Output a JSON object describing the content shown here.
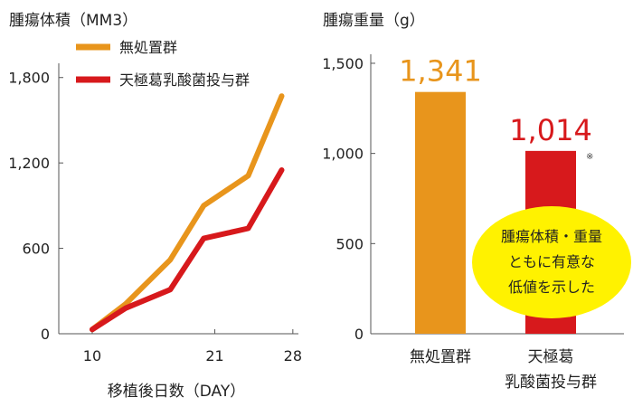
{
  "chart_data": [
    {
      "type": "line",
      "title": "腫瘍体積（MM3）",
      "xlabel": "移植後日数（DAY）",
      "ylabel": "",
      "x_ticks": [
        "10",
        "21",
        "28"
      ],
      "y_ticks": [
        "0",
        "600",
        "1,200",
        "1,800"
      ],
      "xlim": [
        7,
        28.5
      ],
      "ylim": [
        0,
        1900
      ],
      "legend": "top-left",
      "grid": false,
      "series": [
        {
          "name": "無処置群",
          "color": "#e8951c",
          "x": [
            10,
            13,
            17,
            20,
            24,
            27
          ],
          "y": [
            30,
            210,
            520,
            900,
            1110,
            1670
          ]
        },
        {
          "name": "天極葛乳酸菌投与群",
          "color": "#d7191c",
          "x": [
            10,
            13,
            17,
            20,
            24,
            27
          ],
          "y": [
            30,
            180,
            310,
            670,
            740,
            1150
          ]
        }
      ]
    },
    {
      "type": "bar",
      "title": "腫瘍重量（g）",
      "xlabel": "",
      "ylabel": "",
      "y_ticks": [
        "0",
        "500",
        "1,000",
        "1,500"
      ],
      "ylim": [
        0,
        1550
      ],
      "grid": false,
      "categories": [
        {
          "line1": "無処置群",
          "line2": ""
        },
        {
          "line1": "天極葛",
          "line2": "乳酸菌投与群"
        }
      ],
      "values": [
        1341,
        1014
      ],
      "value_labels": [
        "1,341",
        "1,014"
      ],
      "colors": [
        "#e8951c",
        "#d7191c"
      ],
      "asterisk": "※",
      "callout": {
        "line1": "腫瘍体積・重量",
        "line2": "ともに有意な",
        "line3": "低値を示した",
        "color": "#fff200"
      }
    }
  ]
}
